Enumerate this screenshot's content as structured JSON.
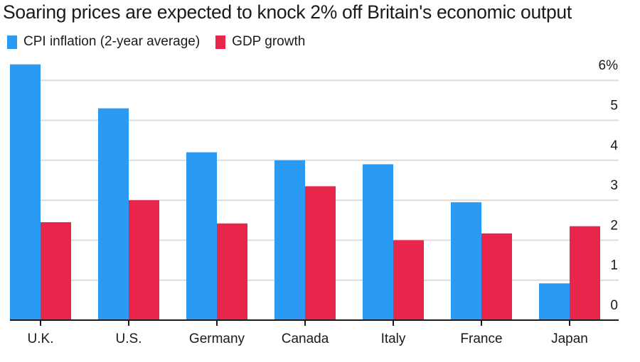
{
  "chart_data": {
    "type": "bar",
    "title": "Soaring prices are expected to knock 2% off Britain's economic output",
    "xlabel": "",
    "ylabel": "",
    "categories": [
      "U.K.",
      "U.S.",
      "Germany",
      "Canada",
      "Italy",
      "France",
      "Japan"
    ],
    "series": [
      {
        "name": "CPI inflation (2-year average)",
        "color": "#2b9af3",
        "values": [
          6.4,
          5.3,
          4.2,
          4.0,
          3.9,
          2.95,
          0.92
        ]
      },
      {
        "name": "GDP growth",
        "color": "#e8254a",
        "values": [
          2.45,
          3.0,
          2.42,
          3.35,
          2.0,
          2.17,
          2.35
        ]
      }
    ],
    "ylim": [
      0,
      6
    ],
    "yticks": [
      0,
      1,
      2,
      3,
      4,
      5,
      6
    ],
    "ytick_labels": [
      "0",
      "1",
      "2",
      "3",
      "4",
      "5",
      "6%"
    ],
    "y_axis_side": "right",
    "grid": true,
    "legend_position": "top-left"
  }
}
